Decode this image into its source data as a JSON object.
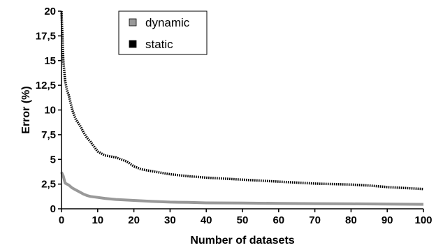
{
  "chart_data": {
    "type": "line",
    "xlabel": "Number of datasets",
    "ylabel": "Error (%)",
    "xlim": [
      0,
      100
    ],
    "ylim": [
      0,
      20
    ],
    "x_ticks": [
      "0",
      "10",
      "20",
      "30",
      "40",
      "50",
      "60",
      "70",
      "80",
      "90",
      "100"
    ],
    "y_ticks": [
      "0",
      "2,5",
      "5",
      "7,5",
      "10",
      "12,5",
      "15",
      "17,5",
      "20"
    ],
    "grid": false,
    "legend_position": "top-left",
    "series": [
      {
        "name": "dynamic",
        "color": "#999999",
        "style": "solid",
        "x": [
          0,
          0.5,
          1,
          2,
          3,
          4,
          5,
          6,
          7,
          8,
          10,
          12,
          15,
          20,
          25,
          30,
          35,
          40,
          50,
          60,
          70,
          80,
          90,
          100
        ],
        "y": [
          3.7,
          3.3,
          2.6,
          2.4,
          2.1,
          1.9,
          1.7,
          1.5,
          1.35,
          1.25,
          1.15,
          1.05,
          0.95,
          0.85,
          0.75,
          0.68,
          0.65,
          0.6,
          0.58,
          0.55,
          0.52,
          0.5,
          0.48,
          0.45
        ]
      },
      {
        "name": "static",
        "color": "#000000",
        "style": "dotted",
        "x": [
          0,
          0.5,
          1,
          1.5,
          2,
          3,
          4,
          5,
          6,
          7,
          8,
          9,
          10,
          12,
          15,
          18,
          20,
          22,
          25,
          30,
          35,
          40,
          45,
          50,
          55,
          60,
          65,
          70,
          75,
          80,
          85,
          90,
          95,
          100
        ],
        "y": [
          20,
          15,
          13,
          12,
          11.5,
          10,
          9,
          8.5,
          7.8,
          7.2,
          6.8,
          6.3,
          5.8,
          5.4,
          5.2,
          4.8,
          4.3,
          4.0,
          3.8,
          3.5,
          3.3,
          3.15,
          3.05,
          2.95,
          2.85,
          2.75,
          2.65,
          2.55,
          2.5,
          2.45,
          2.35,
          2.2,
          2.1,
          2.0
        ]
      }
    ]
  }
}
